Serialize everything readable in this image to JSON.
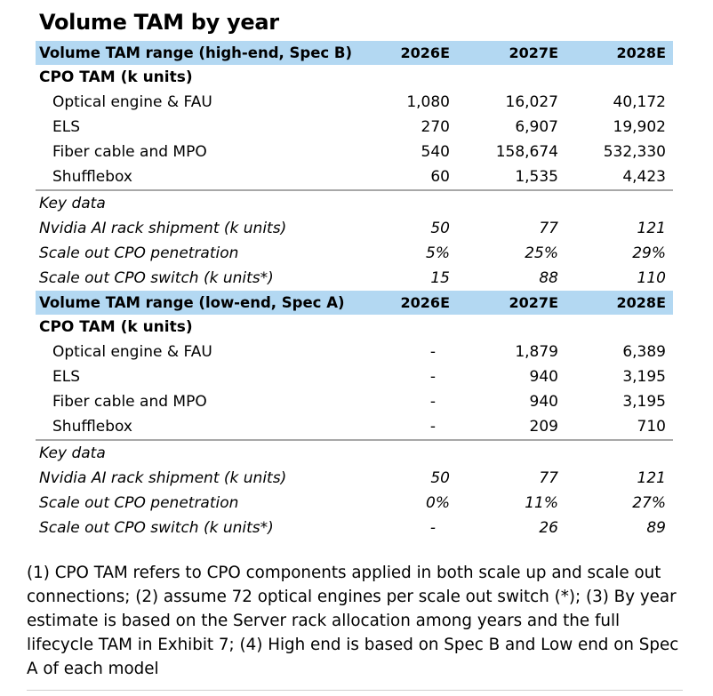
{
  "chart_data": {
    "type": "table",
    "title": "Volume TAM by year",
    "columns": [
      "2026E",
      "2027E",
      "2028E"
    ],
    "sections": [
      {
        "header": "Volume TAM range (high-end, Spec B)",
        "columns": [
          "2026E",
          "2027E",
          "2028E"
        ],
        "group_label": "CPO TAM (k units)",
        "rows": [
          {
            "label": "Optical engine & FAU",
            "values": [
              "1,080",
              "16,027",
              "40,172"
            ]
          },
          {
            "label": "ELS",
            "values": [
              "270",
              "6,907",
              "19,902"
            ]
          },
          {
            "label": "Fiber cable and MPO",
            "values": [
              "540",
              "158,674",
              "532,330"
            ]
          },
          {
            "label": "Shufflebox",
            "values": [
              "60",
              "1,535",
              "4,423"
            ]
          }
        ],
        "key_label": "Key data",
        "key_rows": [
          {
            "label": "Nvidia AI rack shipment (k units)",
            "values": [
              "50",
              "77",
              "121"
            ]
          },
          {
            "label": "Scale out CPO penetration",
            "values": [
              "5%",
              "25%",
              "29%"
            ]
          },
          {
            "label": "Scale out CPO switch (k units*)",
            "values": [
              "15",
              "88",
              "110"
            ]
          }
        ]
      },
      {
        "header": "Volume TAM range (low-end, Spec A)",
        "columns": [
          "2026E",
          "2027E",
          "2028E"
        ],
        "group_label": "CPO TAM (k units)",
        "rows": [
          {
            "label": "Optical engine & FAU",
            "values": [
              "-",
              "1,879",
              "6,389"
            ]
          },
          {
            "label": "ELS",
            "values": [
              "-",
              "940",
              "3,195"
            ]
          },
          {
            "label": "Fiber cable and MPO",
            "values": [
              "-",
              "940",
              "3,195"
            ]
          },
          {
            "label": "Shufflebox",
            "values": [
              "-",
              "209",
              "710"
            ]
          }
        ],
        "key_label": "Key data",
        "key_rows": [
          {
            "label": "Nvidia AI rack shipment (k units)",
            "values": [
              "50",
              "77",
              "121"
            ]
          },
          {
            "label": "Scale out CPO penetration",
            "values": [
              "0%",
              "11%",
              "27%"
            ]
          },
          {
            "label": "Scale out CPO switch (k units*)",
            "values": [
              "-",
              "26",
              "89"
            ]
          }
        ]
      }
    ],
    "notes": "(1) CPO TAM refers to CPO components applied in both scale up and scale out connections; (2) assume 72 optical engines per scale out switch (*);  (3) By year estimate is based on the Server rack allocation among years and the full lifecycle TAM in Exhibit 7; (4) High end is based on Spec B and Low end on Spec A of each model"
  },
  "colors": {
    "header_band": "#b3d8f2",
    "divider": "#a8a8a8"
  }
}
